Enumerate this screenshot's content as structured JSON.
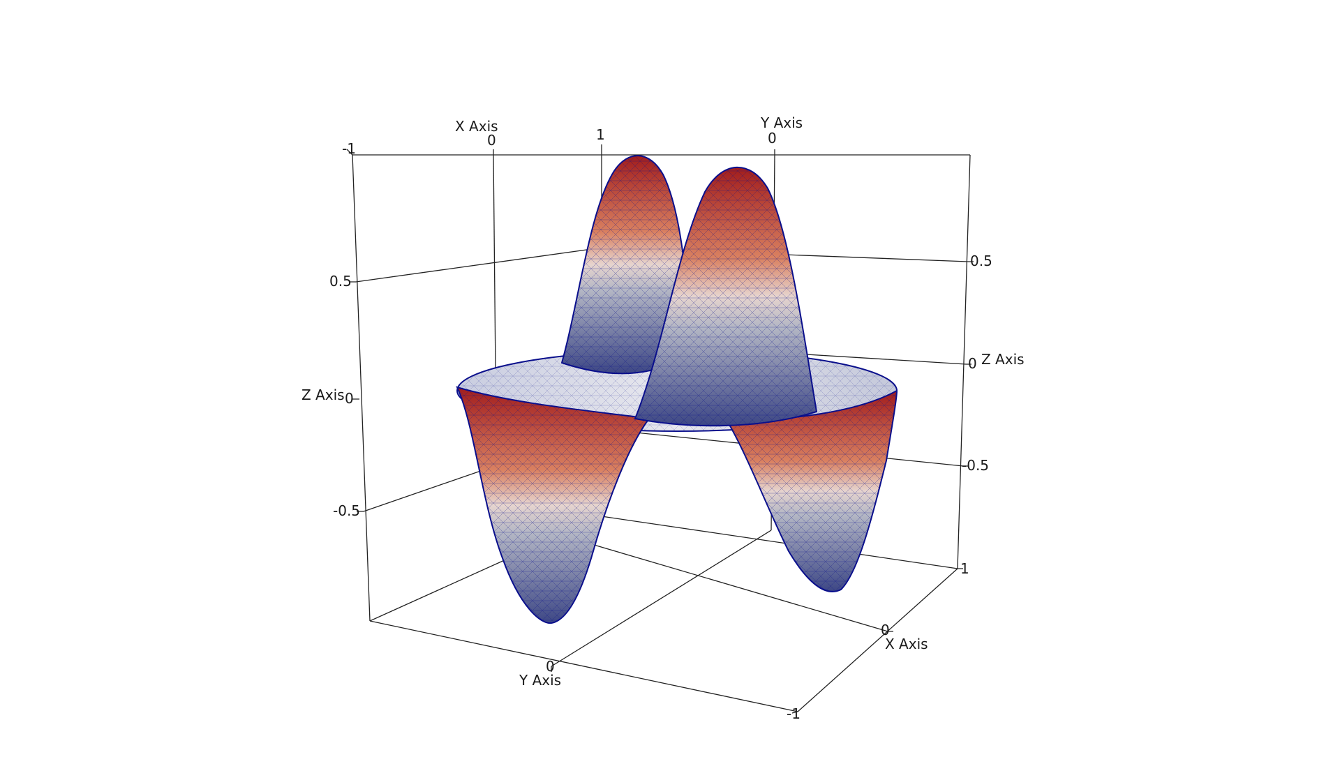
{
  "chart_data": {
    "type": "surface3d",
    "title": "",
    "surface": {
      "function": "z = r^2 * sin(2*theta)",
      "domain": "unit disk",
      "z_range": [
        -1,
        1
      ],
      "mesh": "triangulated wireframe",
      "edge_color": "#0a0f8c",
      "colormap": [
        "#a11d1d",
        "#d98060",
        "#e6d4ce",
        "#9aa0b0",
        "#3d4785"
      ]
    },
    "axes": {
      "x": {
        "label": "X Axis",
        "ticks": [
          "-1",
          "0",
          "1"
        ]
      },
      "y": {
        "label": "Y Axis",
        "ticks": [
          "-1",
          "0",
          "1"
        ]
      },
      "z": {
        "label": "Z Axis",
        "ticks": [
          "-0.5",
          "0",
          "0.5"
        ]
      }
    }
  },
  "labels": {
    "x_axis": "X Axis",
    "y_axis": "Y Axis",
    "z_axis": "Z Axis"
  }
}
